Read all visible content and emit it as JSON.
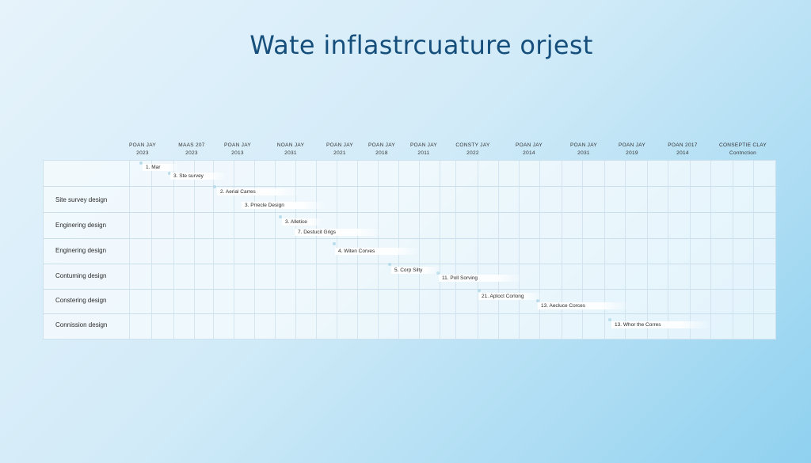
{
  "title": "Wate inflastrcuature orjest",
  "columns": [
    {
      "line1": "POAN JAY",
      "line2": "2023"
    },
    {
      "line1": "MAAS 207",
      "line2": "2023"
    },
    {
      "line1": "POAN JAY",
      "line2": "2013"
    },
    {
      "line1": "NOAN JAY",
      "line2": "2031"
    },
    {
      "line1": "POAN JAY",
      "line2": "2021"
    },
    {
      "line1": "POAN JAY",
      "line2": "2018"
    },
    {
      "line1": "POAN JAY",
      "line2": "2011"
    },
    {
      "line1": "CONSTY JAY",
      "line2": "2022"
    },
    {
      "line1": "POAN JAY",
      "line2": "2014"
    },
    {
      "line1": "POAN JAY",
      "line2": "2031"
    },
    {
      "line1": "POAN JAY",
      "line2": "2019"
    },
    {
      "line1": "POAN 2017",
      "line2": "2014"
    },
    {
      "line1": "CONSEPTIE CLAY",
      "line2": "Contnction"
    }
  ],
  "rows": [
    {
      "label": ""
    },
    {
      "label": "Site survey design"
    },
    {
      "label": "Enginering design"
    },
    {
      "label": "Enginering design"
    },
    {
      "label": "Contuming design"
    },
    {
      "label": "Constering design"
    },
    {
      "label": "Connission design"
    }
  ],
  "tasks": [
    {
      "label": "1. Mar"
    },
    {
      "label": "3. Ste survey"
    },
    {
      "label": "2. Aerial Carres"
    },
    {
      "label": "3. Prrecle Design"
    },
    {
      "label": "3. Alletice"
    },
    {
      "label": "7. Destucit Grigs"
    },
    {
      "label": "4. Witen Corves"
    },
    {
      "label": "5. Corp Silty"
    },
    {
      "label": "11. Poll Sorving"
    },
    {
      "label": "21. Aptoct Corlong"
    },
    {
      "label": "13. Aecluce Corces"
    },
    {
      "label": "13. Whor the Corres"
    }
  ]
}
